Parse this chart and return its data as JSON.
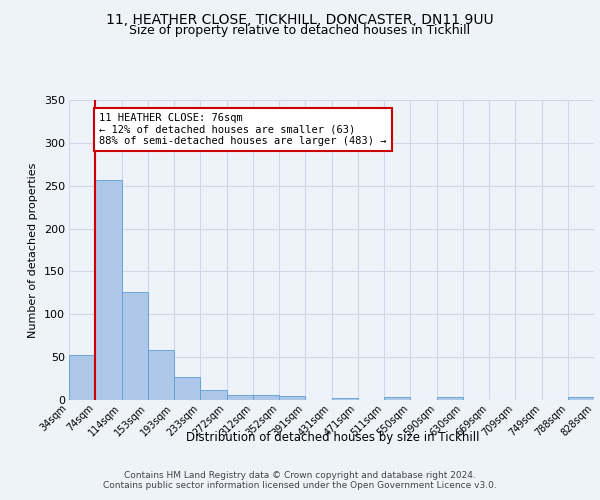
{
  "title_line1": "11, HEATHER CLOSE, TICKHILL, DONCASTER, DN11 9UU",
  "title_line2": "Size of property relative to detached houses in Tickhill",
  "xlabel": "Distribution of detached houses by size in Tickhill",
  "ylabel": "Number of detached properties",
  "footer_line1": "Contains HM Land Registry data © Crown copyright and database right 2024.",
  "footer_line2": "Contains public sector information licensed under the Open Government Licence v3.0.",
  "bin_labels": [
    "34sqm",
    "74sqm",
    "114sqm",
    "153sqm",
    "193sqm",
    "233sqm",
    "272sqm",
    "312sqm",
    "352sqm",
    "391sqm",
    "431sqm",
    "471sqm",
    "511sqm",
    "550sqm",
    "590sqm",
    "630sqm",
    "669sqm",
    "709sqm",
    "749sqm",
    "788sqm",
    "828sqm"
  ],
  "bar_values": [
    52,
    257,
    126,
    58,
    27,
    12,
    6,
    6,
    5,
    0,
    2,
    0,
    4,
    0,
    3,
    0,
    0,
    0,
    0,
    3
  ],
  "bar_color": "#aec6e8",
  "bar_edge_color": "#5a9fd4",
  "grid_color": "#d0d8e8",
  "annotation_line1": "11 HEATHER CLOSE: 76sqm",
  "annotation_line2": "← 12% of detached houses are smaller (63)",
  "annotation_line3": "88% of semi-detached houses are larger (483) →",
  "annotation_box_color": "#ffffff",
  "annotation_box_edge_color": "#cc0000",
  "red_line_color": "#cc0000",
  "ylim": [
    0,
    350
  ],
  "yticks": [
    0,
    50,
    100,
    150,
    200,
    250,
    300,
    350
  ],
  "background_color": "#eef2f9"
}
